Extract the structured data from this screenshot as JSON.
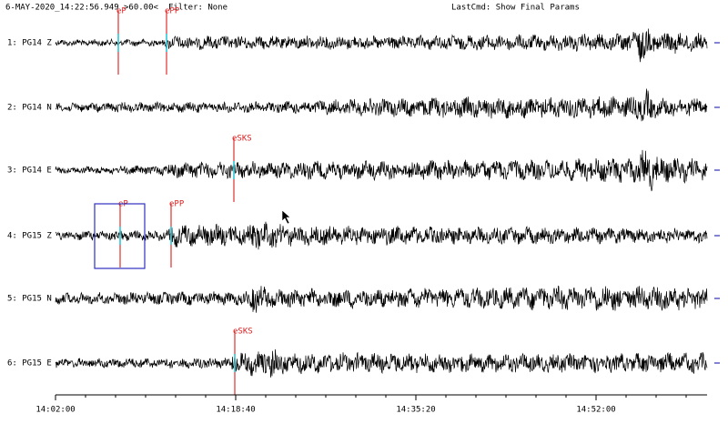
{
  "header": {
    "timestamp": "6-MAY-2020_14:22:56.949",
    "window": ">60.00<",
    "filter": "Filter: None",
    "last_cmd": "LastCmd: Show Final Params"
  },
  "traces": [
    {
      "label": "1: PG14 Z",
      "picks": [
        {
          "phase": "eP"
        },
        {
          "phase": "ePP"
        }
      ]
    },
    {
      "label": "2: PG14 N",
      "picks": []
    },
    {
      "label": "3: PG14 E",
      "picks": [
        {
          "phase": "eSKS"
        }
      ]
    },
    {
      "label": "4: PG15 Z",
      "picks": [
        {
          "phase": "eP"
        },
        {
          "phase": "ePP"
        }
      ]
    },
    {
      "label": "5: PG15 N",
      "picks": []
    },
    {
      "label": "6: PG15 E",
      "picks": [
        {
          "phase": "eSKS"
        }
      ]
    }
  ],
  "time_axis": {
    "ticks": [
      "14:02:00",
      "14:18:40",
      "14:35:20",
      "14:52:00"
    ]
  }
}
